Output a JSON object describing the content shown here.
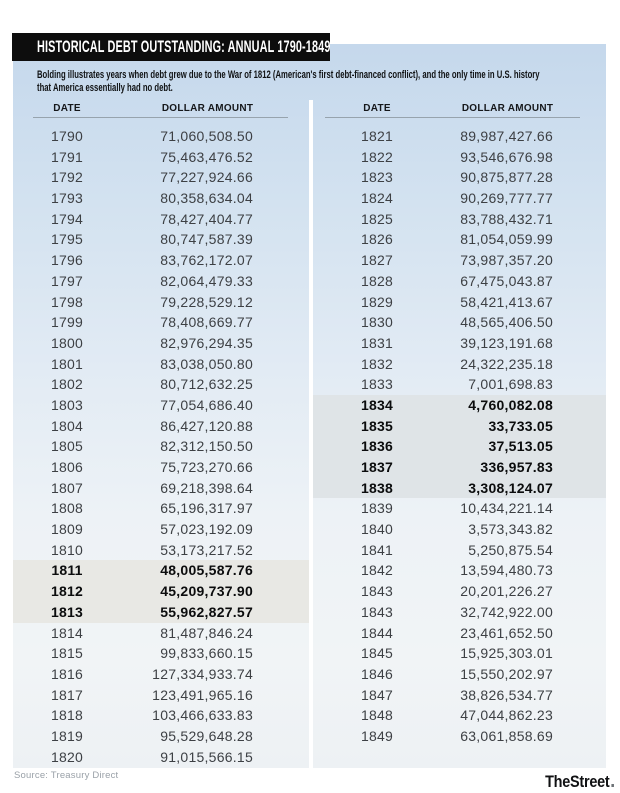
{
  "chart_data": {
    "type": "table",
    "title": "HISTORICAL DEBT OUTSTANDING: ANNUAL 1790-1849",
    "note": "Bolding illustrates years when debt grew due to the War of 1812 (American's first debt-financed conflict), and the only time in U.S. history that America essentially had no debt.",
    "note_lines": [
      "Bolding illustrates years when debt grew due to the War of 1812 (American's first debt-financed conflict), and the only time in U.S. history",
      "that America essentially had no debt."
    ],
    "columns": [
      "DATE",
      "DOLLAR AMOUNT"
    ],
    "source": "Source: Treasury Direct",
    "brand": "TheStreet",
    "colors": {
      "panel_top": "#c5d8ec",
      "panel_bottom": "#edf1f4",
      "title_bar": "#0d0d0d",
      "highlight_left": "#e8e8e4",
      "highlight_right": "#dfe4e7"
    },
    "tables": [
      {
        "rows": [
          {
            "year": "1790",
            "amount": "71,060,508.50",
            "bold": false
          },
          {
            "year": "1791",
            "amount": "75,463,476.52",
            "bold": false
          },
          {
            "year": "1792",
            "amount": "77,227,924.66",
            "bold": false
          },
          {
            "year": "1793",
            "amount": "80,358,634.04",
            "bold": false
          },
          {
            "year": "1794",
            "amount": "78,427,404.77",
            "bold": false
          },
          {
            "year": "1795",
            "amount": "80,747,587.39",
            "bold": false
          },
          {
            "year": "1796",
            "amount": "83,762,172.07",
            "bold": false
          },
          {
            "year": "1797",
            "amount": "82,064,479.33",
            "bold": false
          },
          {
            "year": "1798",
            "amount": "79,228,529.12",
            "bold": false
          },
          {
            "year": "1799",
            "amount": "78,408,669.77",
            "bold": false
          },
          {
            "year": "1800",
            "amount": "82,976,294.35",
            "bold": false
          },
          {
            "year": "1801",
            "amount": "83,038,050.80",
            "bold": false
          },
          {
            "year": "1802",
            "amount": "80,712,632.25",
            "bold": false
          },
          {
            "year": "1803",
            "amount": "77,054,686.40",
            "bold": false
          },
          {
            "year": "1804",
            "amount": "86,427,120.88",
            "bold": false
          },
          {
            "year": "1805",
            "amount": "82,312,150.50",
            "bold": false
          },
          {
            "year": "1806",
            "amount": "75,723,270.66",
            "bold": false
          },
          {
            "year": "1807",
            "amount": "69,218,398.64",
            "bold": false
          },
          {
            "year": "1808",
            "amount": "65,196,317.97",
            "bold": false
          },
          {
            "year": "1809",
            "amount": "57,023,192.09",
            "bold": false
          },
          {
            "year": "1810",
            "amount": "53,173,217.52",
            "bold": false
          },
          {
            "year": "1811",
            "amount": "48,005,587.76",
            "bold": true
          },
          {
            "year": "1812",
            "amount": "45,209,737.90",
            "bold": true
          },
          {
            "year": "1813",
            "amount": "55,962,827.57",
            "bold": true
          },
          {
            "year": "1814",
            "amount": "81,487,846.24",
            "bold": false
          },
          {
            "year": "1815",
            "amount": "99,833,660.15",
            "bold": false
          },
          {
            "year": "1816",
            "amount": "127,334,933.74",
            "bold": false
          },
          {
            "year": "1817",
            "amount": "123,491,965.16",
            "bold": false
          },
          {
            "year": "1818",
            "amount": "103,466,633.83",
            "bold": false
          },
          {
            "year": "1819",
            "amount": "95,529,648.28",
            "bold": false
          },
          {
            "year": "1820",
            "amount": "91,015,566.15",
            "bold": false
          }
        ]
      },
      {
        "rows": [
          {
            "year": "1821",
            "amount": "89,987,427.66",
            "bold": false
          },
          {
            "year": "1822",
            "amount": "93,546,676.98",
            "bold": false
          },
          {
            "year": "1823",
            "amount": "90,875,877.28",
            "bold": false
          },
          {
            "year": "1824",
            "amount": "90,269,777.77",
            "bold": false
          },
          {
            "year": "1825",
            "amount": "83,788,432.71",
            "bold": false
          },
          {
            "year": "1826",
            "amount": "81,054,059.99",
            "bold": false
          },
          {
            "year": "1827",
            "amount": "73,987,357.20",
            "bold": false
          },
          {
            "year": "1828",
            "amount": "67,475,043.87",
            "bold": false
          },
          {
            "year": "1829",
            "amount": "58,421,413.67",
            "bold": false
          },
          {
            "year": "1830",
            "amount": "48,565,406.50",
            "bold": false
          },
          {
            "year": "1831",
            "amount": "39,123,191.68",
            "bold": false
          },
          {
            "year": "1832",
            "amount": "24,322,235.18",
            "bold": false
          },
          {
            "year": "1833",
            "amount": "7,001,698.83",
            "bold": false
          },
          {
            "year": "1834",
            "amount": "4,760,082.08",
            "bold": true
          },
          {
            "year": "1835",
            "amount": "33,733.05",
            "bold": true
          },
          {
            "year": "1836",
            "amount": "37,513.05",
            "bold": true
          },
          {
            "year": "1837",
            "amount": "336,957.83",
            "bold": true
          },
          {
            "year": "1838",
            "amount": "3,308,124.07",
            "bold": true
          },
          {
            "year": "1839",
            "amount": "10,434,221.14",
            "bold": false
          },
          {
            "year": "1840",
            "amount": "3,573,343.82",
            "bold": false
          },
          {
            "year": "1841",
            "amount": "5,250,875.54",
            "bold": false
          },
          {
            "year": "1842",
            "amount": "13,594,480.73",
            "bold": false
          },
          {
            "year": "1843",
            "amount": "20,201,226.27",
            "bold": false
          },
          {
            "year": "1843",
            "amount": "32,742,922.00",
            "bold": false
          },
          {
            "year": "1844",
            "amount": "23,461,652.50",
            "bold": false
          },
          {
            "year": "1845",
            "amount": "15,925,303.01",
            "bold": false
          },
          {
            "year": "1846",
            "amount": "15,550,202.97",
            "bold": false
          },
          {
            "year": "1847",
            "amount": "38,826,534.77",
            "bold": false
          },
          {
            "year": "1848",
            "amount": "47,044,862.23",
            "bold": false
          },
          {
            "year": "1849",
            "amount": "63,061,858.69",
            "bold": false
          }
        ]
      }
    ]
  }
}
